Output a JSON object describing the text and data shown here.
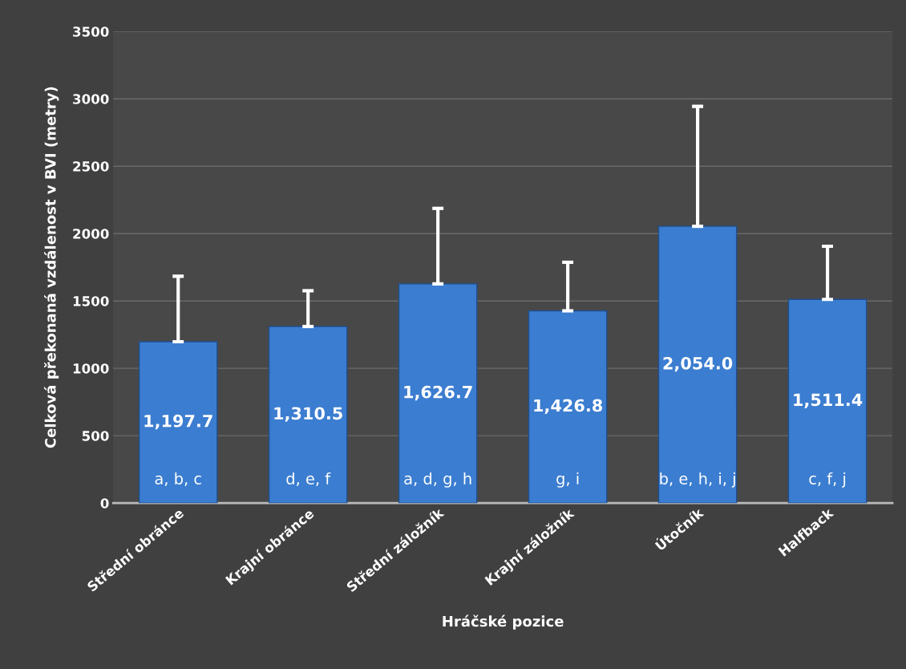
{
  "chart_data": {
    "type": "bar",
    "xlabel": "Hráčské pozice",
    "ylabel": "Celková překonaná vzdálenost v BVI (metry)",
    "categories": [
      "Střední obránce",
      "Krajní obránce",
      "Střední záložník",
      "Krajní záložník",
      "Útočník",
      "Halfback"
    ],
    "values": [
      1197.7,
      1310.5,
      1626.7,
      1426.8,
      2054.0,
      1511.4
    ],
    "value_labels": [
      "1,197.7",
      "1,310.5",
      "1,626.7",
      "1,426.8",
      "2,054.0",
      "1,511.4"
    ],
    "errors": [
      [
        1197.7,
        1683
      ],
      [
        1310.5,
        1576
      ],
      [
        1626.7,
        2187
      ],
      [
        1426.8,
        1787
      ],
      [
        2054.0,
        2944
      ],
      [
        1511.4,
        1906
      ]
    ],
    "color": "#3b7dd0",
    "ylim": [
      0,
      3500
    ],
    "yticks": [
      0,
      500,
      1000,
      1500,
      2000,
      2500,
      3000,
      3500
    ],
    "grid": "y",
    "annotations": [
      "a, b, c",
      "d, e, f",
      "a, d, g, h",
      "g, i",
      "b, e, h, i, j",
      "c, f, j"
    ]
  }
}
